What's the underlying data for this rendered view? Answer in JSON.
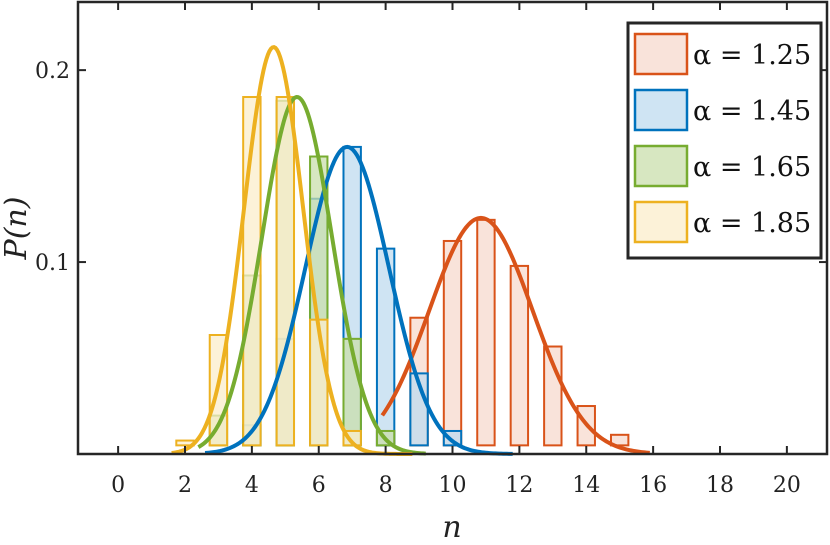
{
  "chart_data": {
    "type": "bar",
    "xlabel": "n",
    "ylabel": "P(n)",
    "xlim": [
      -1.2,
      21.2
    ],
    "ylim": [
      0,
      0.2355
    ],
    "baseline": 0.0045,
    "x_ticks": [
      0,
      2,
      4,
      6,
      8,
      10,
      12,
      14,
      16,
      18,
      20
    ],
    "y_ticks": [
      0.1,
      0.2
    ],
    "y_tick_labels": [
      "0.1",
      "0.2"
    ],
    "grid": false,
    "legend_position": "top-right",
    "x": [
      0,
      1,
      2,
      3,
      4,
      5,
      6,
      7,
      8,
      9,
      10,
      11,
      12,
      13,
      14,
      15,
      16,
      17,
      18,
      19,
      20
    ],
    "series": [
      {
        "name": "α = 1.25",
        "color": "#D95319",
        "fill": "#F7D9CD",
        "values": [
          0,
          0,
          0,
          0,
          0,
          0,
          0,
          0.002,
          0.012,
          0.071,
          0.111,
          0.122,
          0.098,
          0.056,
          0.025,
          0.01,
          0.004,
          0.001,
          0,
          0,
          0
        ],
        "curve": {
          "mean": 10.85,
          "sd": 1.55,
          "peak": 0.123,
          "x_range": [
            7.9,
            15.9
          ]
        }
      },
      {
        "name": "α = 1.45",
        "color": "#0072BD",
        "fill": "#BFDBEF",
        "values": [
          0,
          0,
          0,
          0,
          0.015,
          0.06,
          0.133,
          0.16,
          0.107,
          0.042,
          0.012,
          0.002,
          0,
          0,
          0,
          0,
          0,
          0,
          0,
          0,
          0
        ],
        "curve": {
          "mean": 6.85,
          "sd": 1.25,
          "peak": 0.16,
          "x_range": [
            2.6,
            11.8
          ]
        }
      },
      {
        "name": "α = 1.65",
        "color": "#77AC30",
        "fill": "#C9DFAC",
        "values": [
          0,
          0,
          0,
          0.02,
          0.093,
          0.184,
          0.155,
          0.06,
          0.012,
          0.002,
          0,
          0,
          0,
          0,
          0,
          0,
          0,
          0,
          0,
          0,
          0
        ],
        "curve": {
          "mean": 5.35,
          "sd": 1.05,
          "peak": 0.186,
          "x_range": [
            2.4,
            9.2
          ]
        }
      },
      {
        "name": "α = 1.85",
        "color": "#EDB120",
        "fill": "#FBEECB",
        "values": [
          0,
          0,
          0.007,
          0.062,
          0.186,
          0.186,
          0.07,
          0.012,
          0.002,
          0,
          0,
          0,
          0,
          0,
          0,
          0,
          0,
          0,
          0,
          0,
          0
        ],
        "curve": {
          "mean": 4.65,
          "sd": 0.88,
          "peak": 0.212,
          "x_range": [
            1.6,
            8.8
          ]
        }
      }
    ],
    "legend": [
      {
        "label": "α = 1.25"
      },
      {
        "label": "α = 1.45"
      },
      {
        "label": "α = 1.65"
      },
      {
        "label": "α = 1.85"
      }
    ]
  }
}
